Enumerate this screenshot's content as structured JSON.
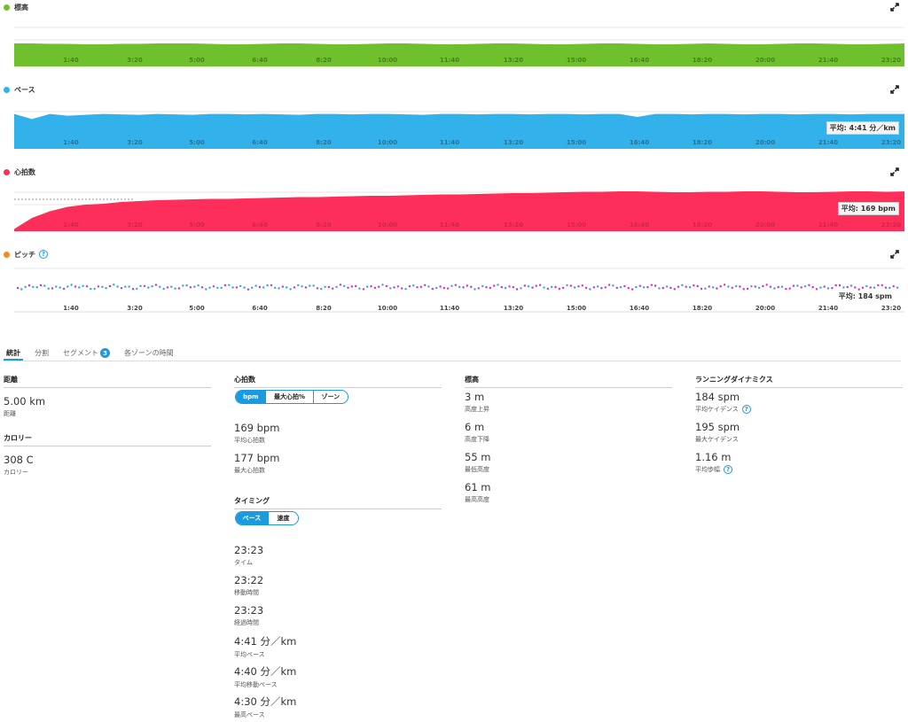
{
  "charts": [
    {
      "id": "elevation",
      "title": "標高",
      "color": "#6ec12d",
      "ticks": [
        "1:40",
        "3:20",
        "5:00",
        "6:40",
        "8:20",
        "10:00",
        "11:40",
        "13:20",
        "15:00",
        "16:40",
        "18:20",
        "20:00",
        "21:40",
        "23:20"
      ],
      "avg": "",
      "series": [
        0.52,
        0.52,
        0.51,
        0.51,
        0.5,
        0.5,
        0.51,
        0.51,
        0.52,
        0.52,
        0.52,
        0.51,
        0.5,
        0.5,
        0.51,
        0.52,
        0.52,
        0.51,
        0.5,
        0.5,
        0.51,
        0.52,
        0.52,
        0.51,
        0.5,
        0.5,
        0.51,
        0.52,
        0.52,
        0.51,
        0.5,
        0.5,
        0.51,
        0.52,
        0.52,
        0.51,
        0.5,
        0.5,
        0.51,
        0.52,
        0.51,
        0.5,
        0.5,
        0.51,
        0.52,
        0.52,
        0.51,
        0.5,
        0.5,
        0.51,
        0.52
      ]
    },
    {
      "id": "pace",
      "title": "ペース",
      "color": "#33b1ea",
      "ticks": [
        "1:40",
        "3:20",
        "5:00",
        "6:40",
        "8:20",
        "10:00",
        "11:40",
        "13:20",
        "15:00",
        "16:40",
        "18:20",
        "20:00",
        "21:40",
        "23:20"
      ],
      "avg": "平均: 4:41 分／km",
      "series": [
        0.82,
        0.7,
        0.82,
        0.78,
        0.8,
        0.82,
        0.81,
        0.8,
        0.82,
        0.81,
        0.8,
        0.82,
        0.82,
        0.81,
        0.82,
        0.81,
        0.8,
        0.82,
        0.82,
        0.81,
        0.82,
        0.82,
        0.81,
        0.8,
        0.82,
        0.82,
        0.81,
        0.82,
        0.82,
        0.81,
        0.82,
        0.82,
        0.81,
        0.82,
        0.82,
        0.75,
        0.82,
        0.82,
        0.81,
        0.82,
        0.82,
        0.81,
        0.82,
        0.82,
        0.81,
        0.82,
        0.82,
        0.81,
        0.82,
        0.82,
        0.82
      ]
    },
    {
      "id": "hr",
      "title": "心拍数",
      "color": "#fd2e59",
      "ticks": [
        "1:40",
        "3:20",
        "5:00",
        "6:40",
        "8:20",
        "10:00",
        "11:40",
        "13:20",
        "15:00",
        "16:40",
        "18:20",
        "20:00",
        "21:40",
        "23:20"
      ],
      "avg": "平均: 169 bpm",
      "series": [
        0.05,
        0.3,
        0.45,
        0.55,
        0.6,
        0.62,
        0.66,
        0.68,
        0.7,
        0.71,
        0.72,
        0.73,
        0.73,
        0.74,
        0.75,
        0.76,
        0.77,
        0.77,
        0.78,
        0.79,
        0.8,
        0.8,
        0.81,
        0.82,
        0.83,
        0.83,
        0.84,
        0.85,
        0.86,
        0.86,
        0.87,
        0.88,
        0.89,
        0.89,
        0.9,
        0.9,
        0.89,
        0.88,
        0.88,
        0.89,
        0.89,
        0.9,
        0.9,
        0.89,
        0.88,
        0.88,
        0.89,
        0.9,
        0.9,
        0.89,
        0.9
      ]
    },
    {
      "id": "cadence",
      "title": "ピッチ",
      "color": "#f28c20",
      "ticks": [
        "1:40",
        "3:20",
        "5:00",
        "6:40",
        "8:20",
        "10:00",
        "11:40",
        "13:20",
        "15:00",
        "16:40",
        "18:20",
        "20:00",
        "21:40",
        "23:20"
      ],
      "avg": "平均: 184 spm"
    }
  ],
  "tabs": [
    {
      "label": "統計",
      "active": true
    },
    {
      "label": "分割",
      "active": false
    },
    {
      "label": "セグメント",
      "active": false,
      "badge": "3"
    },
    {
      "label": "各ゾーンの時間",
      "active": false
    }
  ],
  "distance": {
    "title": "距離",
    "value": "5.00 km",
    "label": "距離"
  },
  "calories": {
    "title": "カロリー",
    "value": "308 C",
    "label": "カロリー"
  },
  "heart_rate": {
    "title": "心拍数",
    "toggle": [
      "bpm",
      "最大心拍%",
      "ゾーン"
    ],
    "stats": [
      {
        "value": "169 bpm",
        "label": "平均心拍数"
      },
      {
        "value": "177 bpm",
        "label": "最大心拍数"
      }
    ]
  },
  "timing": {
    "title": "タイミング",
    "toggle": [
      "ペース",
      "速度"
    ],
    "stats": [
      {
        "value": "23:23",
        "label": "タイム"
      },
      {
        "value": "23:22",
        "label": "移動時間"
      },
      {
        "value": "23:23",
        "label": "経過時間"
      },
      {
        "value": "4:41 分／km",
        "label": "平均ペース"
      },
      {
        "value": "4:40 分／km",
        "label": "平均移動ペース"
      },
      {
        "value": "4:30 分／km",
        "label": "最高ペース"
      }
    ]
  },
  "elevation_stats": {
    "title": "標高",
    "stats": [
      {
        "value": "3 m",
        "label": "高度上昇"
      },
      {
        "value": "6 m",
        "label": "高度下降"
      },
      {
        "value": "55 m",
        "label": "最低高度"
      },
      {
        "value": "61 m",
        "label": "最高高度"
      }
    ]
  },
  "dynamics": {
    "title": "ランニングダイナミクス",
    "stats": [
      {
        "value": "184 spm",
        "label": "平均ケイデンス",
        "help": true
      },
      {
        "value": "195 spm",
        "label": "最大ケイデンス",
        "help": false
      },
      {
        "value": "1.16 m",
        "label": "平均歩幅",
        "help": true
      }
    ]
  }
}
